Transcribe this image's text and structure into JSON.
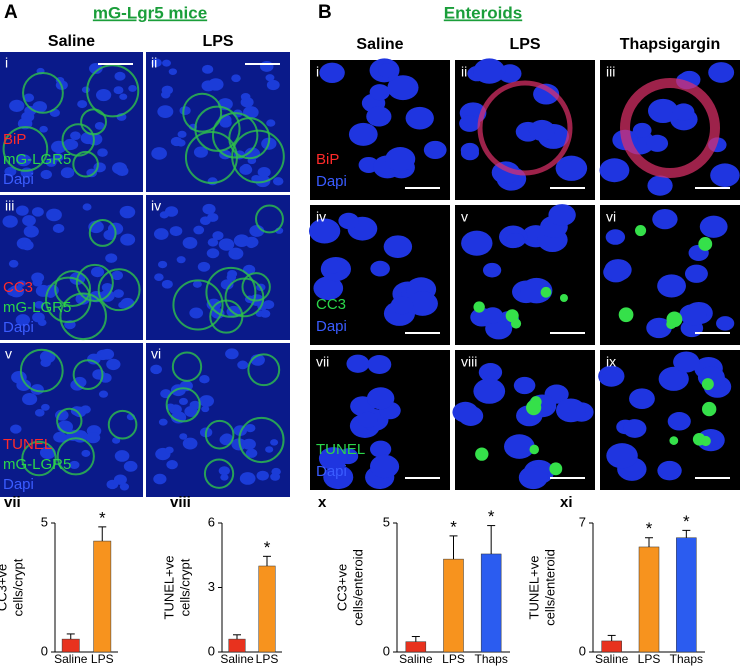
{
  "figure": {
    "A": {
      "letter": "A",
      "title": "mG-Lgr5 mice",
      "columns": [
        "Saline",
        "LPS"
      ],
      "panel_labels": [
        "i",
        "ii",
        "iii",
        "iv",
        "v",
        "vi"
      ],
      "stains": [
        [
          "BiP",
          "mG-LGR5",
          "Dapi"
        ],
        [
          "CC3",
          "mG-LGR5",
          "Dapi"
        ],
        [
          "TUNEL",
          "mG-LGR5",
          "Dapi"
        ]
      ]
    },
    "B": {
      "letter": "B",
      "title": "Enteroids",
      "columns": [
        "Saline",
        "LPS",
        "Thapsigargin"
      ],
      "panel_labels": [
        "i",
        "ii",
        "iii",
        "iv",
        "v",
        "vi",
        "vii",
        "viii",
        "ix"
      ],
      "stains": [
        [
          "BiP",
          "Dapi"
        ],
        [
          "CC3",
          "Dapi"
        ],
        [
          "TUNEL",
          "Dapi"
        ]
      ]
    }
  },
  "chart_data": [
    {
      "type": "bar",
      "panel_label": "vii",
      "ylabel": [
        "CC3+ve",
        "cells/crypt"
      ],
      "categories": [
        "Saline",
        "LPS"
      ],
      "values": [
        0.5,
        4.3
      ],
      "errors": [
        0.2,
        0.55
      ],
      "colors": [
        "#e8321e",
        "#f7931e"
      ],
      "significant": [
        false,
        true
      ],
      "significance_label": "*",
      "ylim": [
        0,
        5
      ],
      "yticks": [
        0,
        5
      ]
    },
    {
      "type": "bar",
      "panel_label": "viii",
      "ylabel": [
        "TUNEL+ve",
        "cells/crypt"
      ],
      "categories": [
        "Saline",
        "LPS"
      ],
      "values": [
        0.6,
        4.0
      ],
      "errors": [
        0.2,
        0.45
      ],
      "colors": [
        "#e8321e",
        "#f7931e"
      ],
      "significant": [
        false,
        true
      ],
      "significance_label": "*",
      "ylim": [
        0,
        6
      ],
      "yticks": [
        0,
        3,
        6
      ]
    },
    {
      "type": "bar",
      "panel_label": "x",
      "ylabel": [
        "CC3+ve",
        "cells/enteroid"
      ],
      "categories": [
        "Saline",
        "LPS",
        "Thaps"
      ],
      "values": [
        0.4,
        3.6,
        3.8
      ],
      "errors": [
        0.2,
        0.9,
        1.1
      ],
      "colors": [
        "#e8321e",
        "#f7931e",
        "#2b5cf0"
      ],
      "significant": [
        false,
        true,
        true
      ],
      "significance_label": "*",
      "ylim": [
        0,
        5
      ],
      "yticks": [
        0,
        5
      ]
    },
    {
      "type": "bar",
      "panel_label": "xi",
      "ylabel": [
        "TUNEL+ve",
        "cells/enteroid"
      ],
      "categories": [
        "Saline",
        "LPS",
        "Thaps"
      ],
      "values": [
        0.6,
        5.7,
        6.2
      ],
      "errors": [
        0.3,
        0.5,
        0.4
      ],
      "colors": [
        "#e8321e",
        "#f7931e",
        "#2b5cf0"
      ],
      "significant": [
        false,
        true,
        true
      ],
      "significance_label": "*",
      "ylim": [
        0,
        7
      ],
      "yticks": [
        0,
        7
      ]
    }
  ]
}
